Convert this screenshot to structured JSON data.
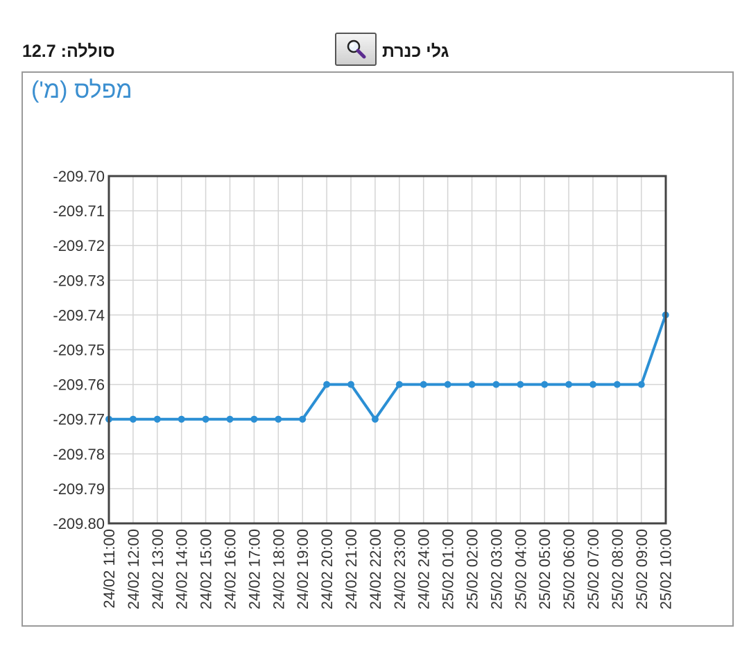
{
  "header": {
    "solela_text": "סוללה: 12.7",
    "lake_label": "גלי כנרת",
    "search_icon": "magnifier-icon"
  },
  "colors": {
    "series": "#2b8fd4",
    "title": "#3b8fd0",
    "grid": "#d4d4d4",
    "plot_border": "#444444"
  },
  "chart_data": {
    "type": "line",
    "title": "מפלס (מ')",
    "xlabel": "",
    "ylabel": "",
    "ylim": [
      -209.8,
      -209.7
    ],
    "yticks": [
      "-209.70",
      "-209.71",
      "-209.72",
      "-209.73",
      "-209.74",
      "-209.75",
      "-209.76",
      "-209.77",
      "-209.78",
      "-209.79",
      "-209.80"
    ],
    "grid": true,
    "legend": "none",
    "categories": [
      "24/02 11:00",
      "24/02 12:00",
      "24/02 13:00",
      "24/02 14:00",
      "24/02 15:00",
      "24/02 16:00",
      "24/02 17:00",
      "24/02 18:00",
      "24/02 19:00",
      "24/02 20:00",
      "24/02 21:00",
      "24/02 22:00",
      "24/02 23:00",
      "24/02 24:00",
      "25/02 01:00",
      "25/02 02:00",
      "25/02 03:00",
      "25/02 04:00",
      "25/02 05:00",
      "25/02 06:00",
      "25/02 07:00",
      "25/02 08:00",
      "25/02 09:00",
      "25/02 10:00"
    ],
    "series": [
      {
        "values": [
          -209.77,
          -209.77,
          -209.77,
          -209.77,
          -209.77,
          -209.77,
          -209.77,
          -209.77,
          -209.77,
          -209.76,
          -209.76,
          -209.77,
          -209.76,
          -209.76,
          -209.76,
          -209.76,
          -209.76,
          -209.76,
          -209.76,
          -209.76,
          -209.76,
          -209.76,
          -209.76,
          -209.74
        ]
      }
    ]
  }
}
